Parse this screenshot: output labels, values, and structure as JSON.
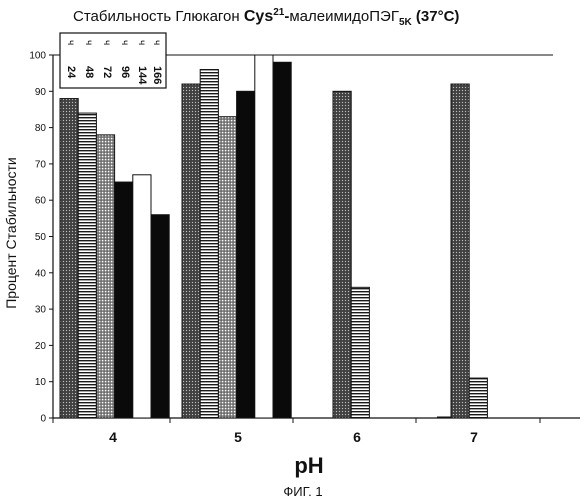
{
  "chart_data": {
    "type": "bar",
    "title": {
      "prefix": "Стабильность Глюкагон ",
      "bold_base": "Cys",
      "bold_sup": "21",
      "bold_dash": "-",
      "normal_mid": "малеимидоПЭГ",
      "bold_sub": "5K",
      "bold_suffix": " (37°C)"
    },
    "ylabel": "Процент Стабильности",
    "xlabel": "pH",
    "caption": "ФИГ. 1",
    "ylim": [
      0,
      100
    ],
    "y_ticks": [
      "0",
      "10",
      "20",
      "30",
      "40",
      "50",
      "60",
      "70",
      "80",
      "90",
      "100"
    ],
    "reference_line": 100,
    "categories": [
      "4",
      "5",
      "6",
      "7"
    ],
    "series": [
      {
        "name": "24 ч",
        "fill": "dots-dark",
        "values": [
          88,
          92,
          90,
          92
        ]
      },
      {
        "name": "48 ч",
        "fill": "hlines",
        "values": [
          84,
          96,
          36,
          11
        ]
      },
      {
        "name": "72 ч",
        "fill": "dots-light",
        "values": [
          78,
          83,
          null,
          null
        ]
      },
      {
        "name": "96 ч",
        "fill": "solid-black",
        "values": [
          65,
          90,
          null,
          null
        ]
      },
      {
        "name": "144 ч",
        "fill": "white",
        "values": [
          67,
          100,
          null,
          null
        ]
      },
      {
        "name": "166 ч",
        "fill": "solid-black",
        "values": [
          56,
          98,
          null,
          null
        ]
      }
    ],
    "legend": {
      "placement": "top-left",
      "orientation": "rotated-vertical"
    },
    "grid": false
  }
}
